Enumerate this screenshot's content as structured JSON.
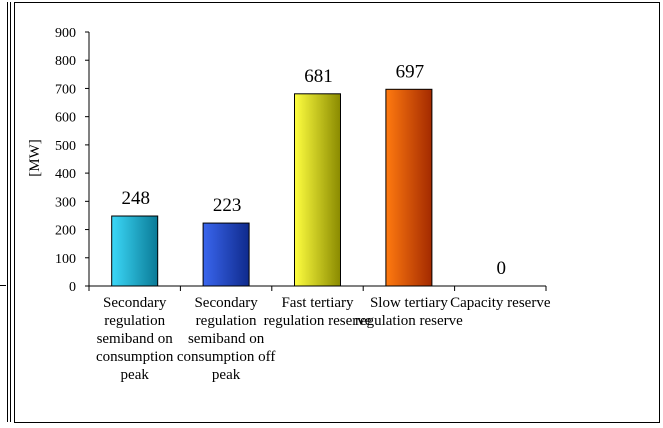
{
  "chart_data": {
    "type": "bar",
    "ylabel": "[MW]",
    "ylim": [
      0,
      900
    ],
    "yticks": [
      "0",
      "100",
      "200",
      "300",
      "400",
      "500",
      "600",
      "700",
      "800",
      "900"
    ],
    "categories": [
      [
        "Secondary",
        "regulation",
        "semiband on",
        "consumption",
        "peak"
      ],
      [
        "Secondary",
        "regulation",
        "semiband on",
        "consumption off",
        "peak"
      ],
      [
        "Fast tertiary",
        "regulation reserve"
      ],
      [
        "Slow tertiary",
        "regulation reserve"
      ],
      [
        "Capacity reserve"
      ]
    ],
    "values": [
      248,
      223,
      681,
      697,
      0
    ],
    "value_labels": [
      "248",
      "223",
      "681",
      "697",
      "0"
    ],
    "colors": [
      [
        "#3cd8f8",
        "#0a7a96"
      ],
      [
        "#3a66ee",
        "#0f2a8c"
      ],
      [
        "#ffff40",
        "#8a8a00"
      ],
      [
        "#ff7a10",
        "#a32a00"
      ],
      [
        "#cccccc",
        "#666666"
      ]
    ],
    "legend": "none",
    "grid": false
  }
}
